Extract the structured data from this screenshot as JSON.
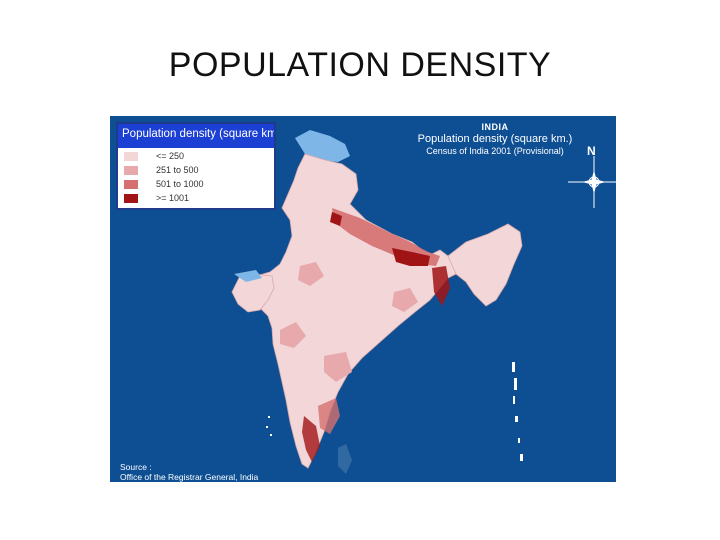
{
  "slide": {
    "title": "POPULATION DENSITY"
  },
  "map": {
    "country_label": "INDIA",
    "subtitle": "Population density (square km.)",
    "census_note": "Census of India 2001 (Provisional)",
    "north_label": "N",
    "source_line1": "Source :",
    "source_line2": "Office of the Registrar General, India",
    "colors": {
      "ocean": "#0e4f93",
      "lightest": "#f2d6d8",
      "light": "#e7a9ab",
      "medium": "#d4706f",
      "dark": "#a11416",
      "high_altitude": "#7fb6e8"
    },
    "icons": [
      "compass-rose-icon"
    ]
  },
  "legend": {
    "title": "Population density (square km.)",
    "items": [
      {
        "label": "<= 250",
        "color": "#f2d6d8"
      },
      {
        "label": "251 to 500",
        "color": "#e7a9ab"
      },
      {
        "label": "501 to 1000",
        "color": "#d4706f"
      },
      {
        "label": ">= 1001",
        "color": "#a11416"
      }
    ]
  }
}
